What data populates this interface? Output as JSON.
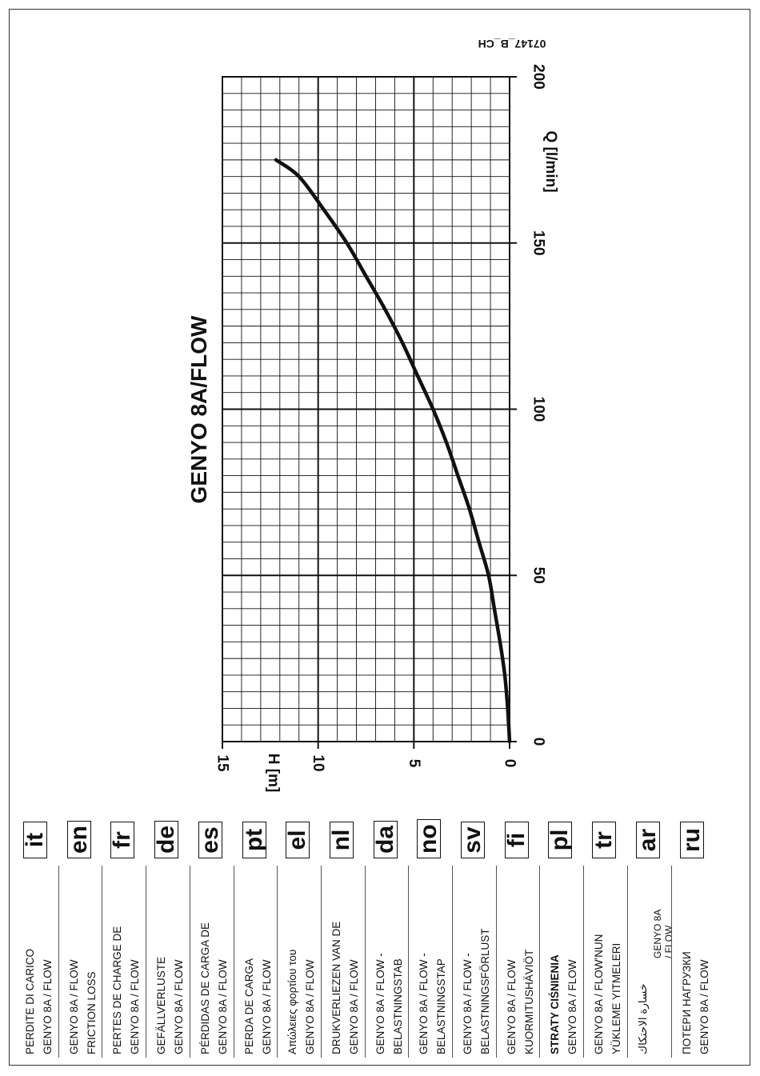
{
  "doc_code": "07147_B_CH",
  "chart_data": {
    "type": "line",
    "title": "GENYO 8A/FLOW",
    "xlabel": "Q [l/min]",
    "ylabel": "H [m]",
    "xlim": [
      0,
      200
    ],
    "ylim": [
      0,
      15
    ],
    "x_ticks": [
      "0",
      "50",
      "100",
      "150",
      "200"
    ],
    "y_ticks": [
      "0",
      "5",
      "10",
      "15"
    ],
    "grid": true,
    "series": [
      {
        "color": "#111111",
        "x": [
          0,
          10,
          20,
          30,
          40,
          50,
          60,
          70,
          80,
          90,
          100,
          110,
          120,
          130,
          140,
          150,
          160,
          170,
          175
        ],
        "y": [
          0.0,
          0.1,
          0.25,
          0.5,
          0.8,
          1.1,
          1.6,
          2.1,
          2.7,
          3.3,
          4.0,
          4.8,
          5.6,
          6.5,
          7.5,
          8.5,
          9.7,
          11.0,
          12.2
        ]
      }
    ]
  },
  "legend": [
    {
      "code": "it",
      "lines": [
        "PERDITE DI CARICO",
        "GENYO 8A / FLOW"
      ],
      "bold": false
    },
    {
      "code": "en",
      "lines": [
        "GENYO 8A / FLOW",
        "FRICTION LOSS"
      ],
      "bold": false
    },
    {
      "code": "fr",
      "lines": [
        "PERTES DE CHARGE DE",
        "GENYO 8A / FLOW"
      ],
      "bold": false
    },
    {
      "code": "de",
      "lines": [
        "GEFÄLLVERLUSTE",
        "GENYO 8A / FLOW"
      ],
      "bold": false
    },
    {
      "code": "es",
      "lines": [
        "PÉRDIDAS DE CARGA DE",
        "GENYO 8A / FLOW"
      ],
      "bold": false
    },
    {
      "code": "pt",
      "lines": [
        "PERDA DE CARGA",
        "GENYO 8A / FLOW"
      ],
      "bold": false
    },
    {
      "code": "el",
      "lines": [
        "Απώλειες φορτίου του",
        "GENYO 8A / FLOW"
      ],
      "bold": false
    },
    {
      "code": "nl",
      "lines": [
        "DRUKVERLIEZEN VAN DE",
        "GENYO 8A / FLOW"
      ],
      "bold": false
    },
    {
      "code": "da",
      "lines": [
        "GENYO 8A / FLOW -",
        "BELASTNINGSTAB"
      ],
      "bold": false
    },
    {
      "code": "no",
      "lines": [
        "GENYO 8A / FLOW -",
        "BELASTNINGSTAP"
      ],
      "bold": false
    },
    {
      "code": "sv",
      "lines": [
        "GENYO 8A / FLOW -",
        "BELASTNINGSFÖRLUST"
      ],
      "bold": false
    },
    {
      "code": "fi",
      "lines": [
        "GENYO 8A / FLOW",
        "KUORMITUSHÄVIÖT"
      ],
      "bold": false
    },
    {
      "code": "pl",
      "lines": [
        "STRATY CIŚNIENIA",
        "GENYO 8A / FLOW"
      ],
      "bold": true
    },
    {
      "code": "tr",
      "lines": [
        "GENYO 8A / FLOW'NUN",
        "YÜKLEME YITMELERI"
      ],
      "bold": false
    },
    {
      "code": "ar",
      "lines": [
        "خسارة الاحتكاك",
        "GENYO 8A",
        "/ FLOW"
      ],
      "bold": false
    },
    {
      "code": "ru",
      "lines": [
        "ПОТЕРИ НАГРУЗКИ",
        "GENYO 8A / FLOW"
      ],
      "bold": false
    }
  ]
}
